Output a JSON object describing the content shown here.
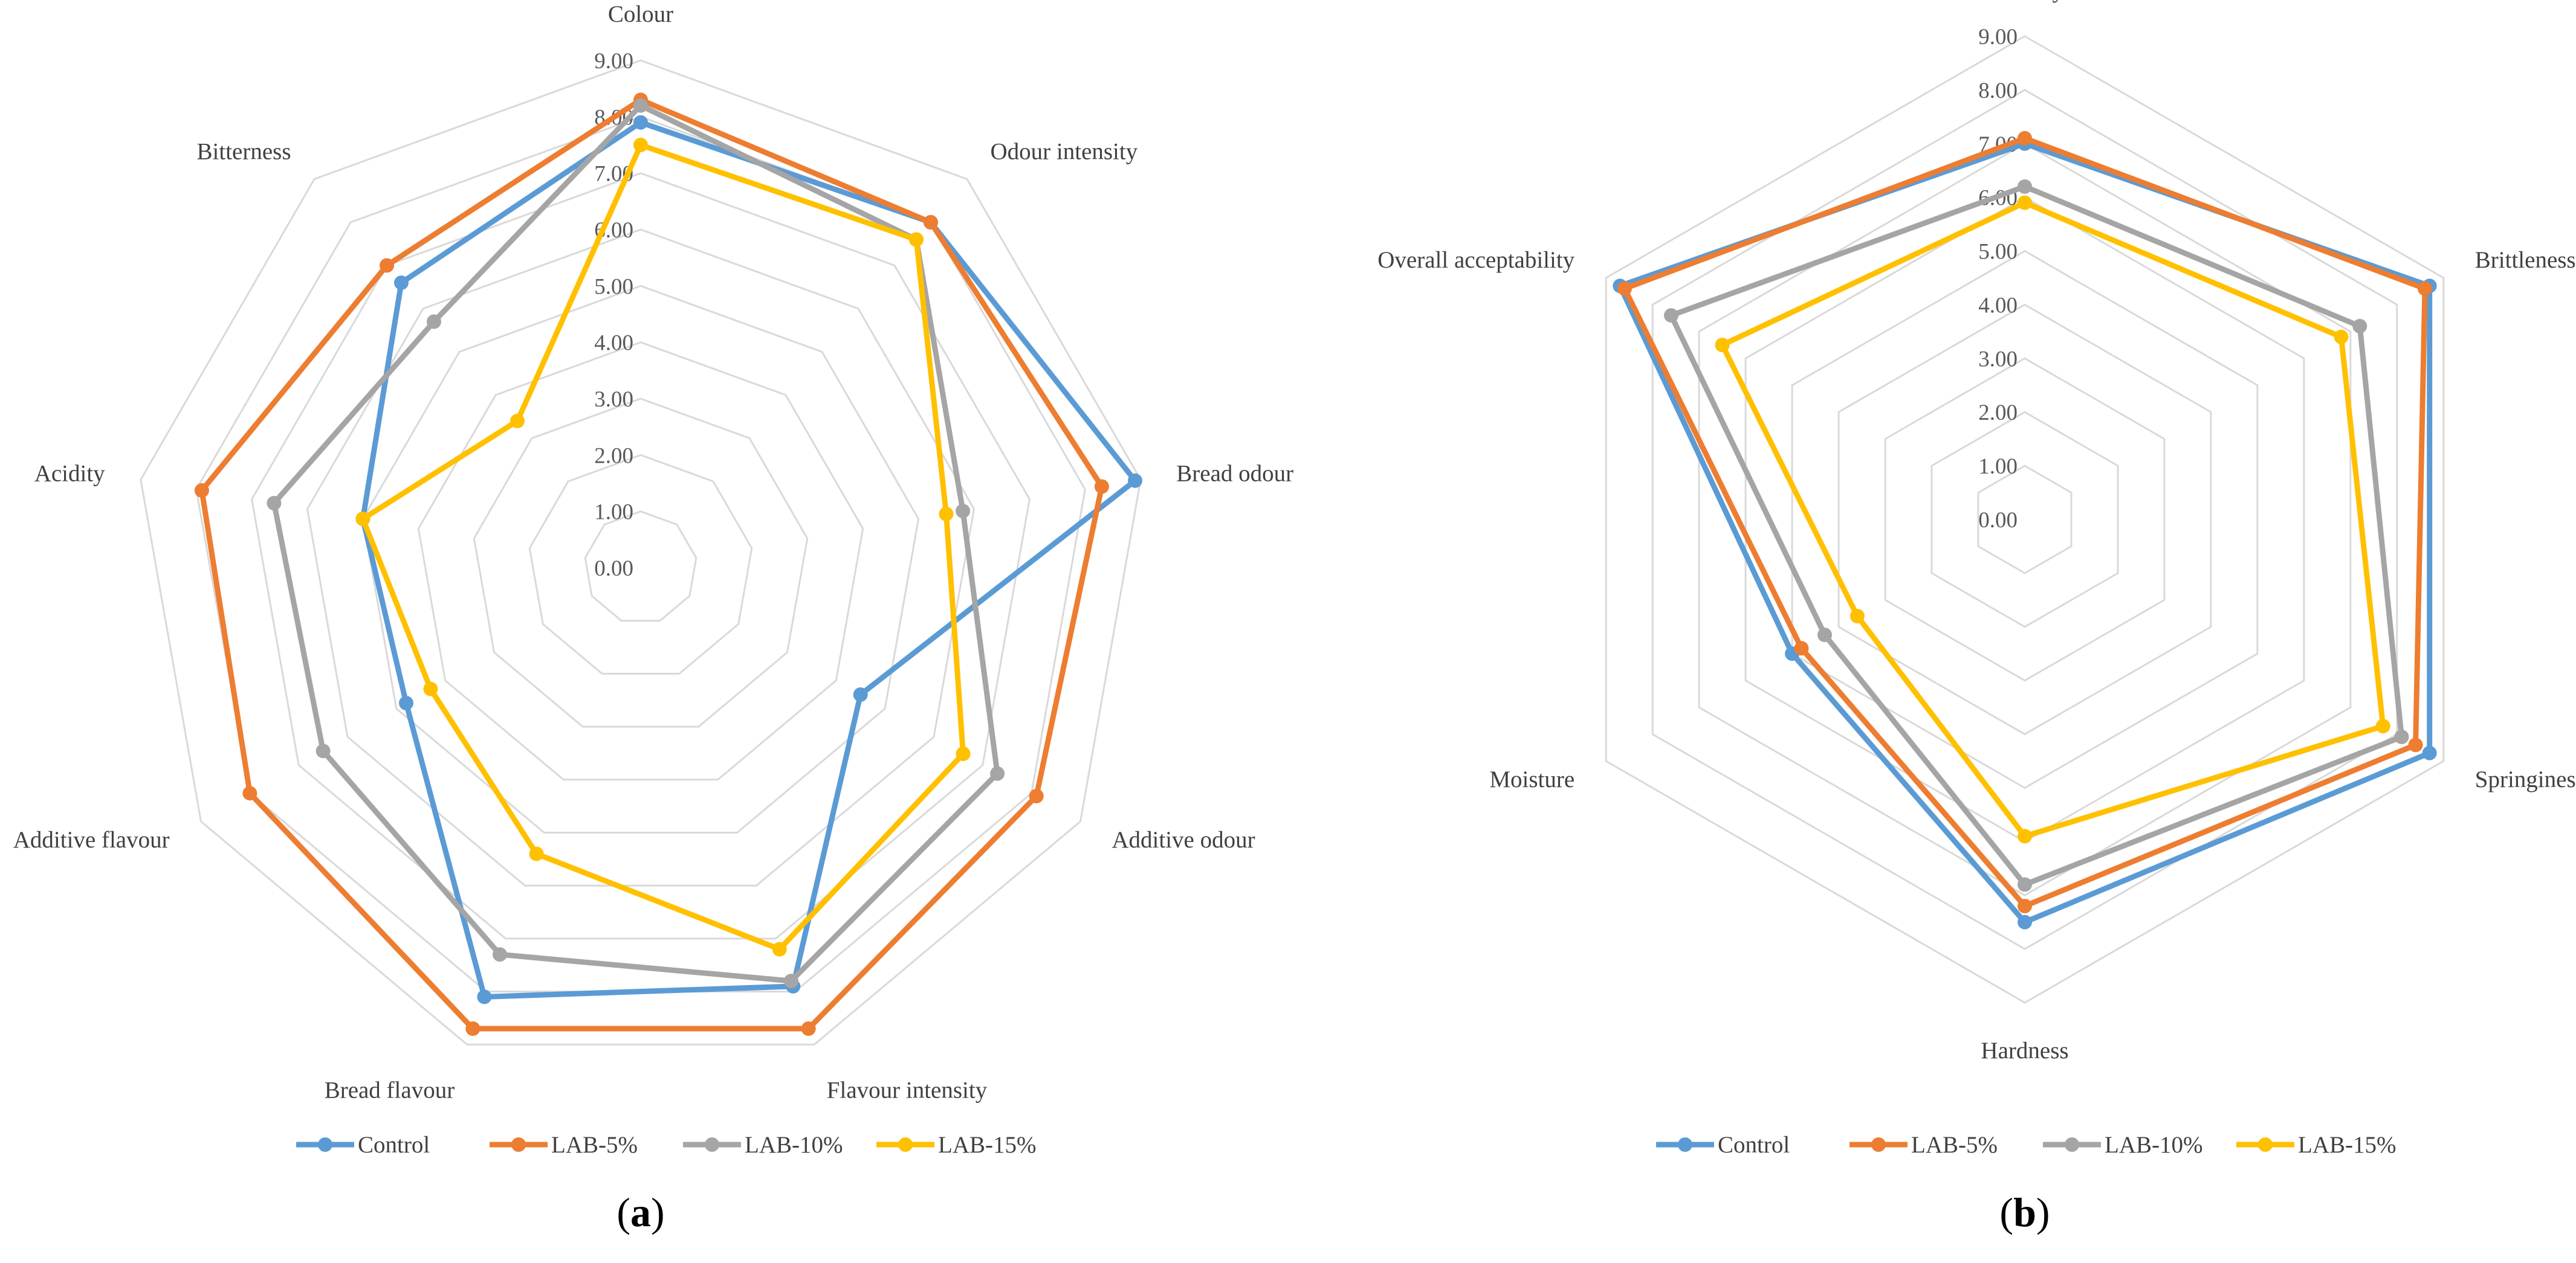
{
  "chart_data": [
    {
      "type": "radar",
      "panel_label": "a",
      "axes": [
        "Colour",
        "Odour intensity",
        "Bread odour",
        "Additive odour",
        "Flavour intensity",
        "Bread flavour",
        "Additive flavour",
        "Acidity",
        "Bitterness"
      ],
      "tick_labels": [
        "0.00",
        "1.00",
        "2.00",
        "3.00",
        "4.00",
        "5.00",
        "6.00",
        "7.00",
        "8.00",
        "9.00"
      ],
      "range": [
        0,
        9
      ],
      "grid": true,
      "legend_position": "bottom",
      "series": [
        {
          "name": "Control",
          "color": "#5B9BD5",
          "values": [
            7.9,
            8.0,
            8.9,
            4.5,
            7.9,
            8.1,
            4.8,
            5.0,
            6.6
          ]
        },
        {
          "name": "LAB-5%",
          "color": "#ED7D31",
          "values": [
            8.3,
            8.0,
            8.3,
            8.1,
            8.7,
            8.7,
            8.0,
            7.9,
            7.0
          ]
        },
        {
          "name": "LAB-10%",
          "color": "#A5A5A5",
          "values": [
            8.2,
            7.6,
            5.8,
            7.3,
            7.8,
            7.3,
            6.5,
            6.6,
            5.7
          ]
        },
        {
          "name": "LAB-15%",
          "color": "#FFC000",
          "values": [
            7.5,
            7.6,
            5.5,
            6.6,
            7.2,
            5.4,
            4.3,
            5.0,
            3.4
          ]
        }
      ]
    },
    {
      "type": "radar",
      "panel_label": "b",
      "axes": [
        "Porosity",
        "Brittleness",
        "Springiness",
        "Hardness",
        "Moisture",
        "Overall acceptability"
      ],
      "tick_labels": [
        "0.00",
        "1.00",
        "2.00",
        "3.00",
        "4.00",
        "5.00",
        "6.00",
        "7.00",
        "8.00",
        "9.00"
      ],
      "range": [
        0,
        9
      ],
      "grid": true,
      "legend_position": "bottom",
      "series": [
        {
          "name": "Control",
          "color": "#5B9BD5",
          "values": [
            7.0,
            8.7,
            8.7,
            7.5,
            5.0,
            8.7
          ]
        },
        {
          "name": "LAB-5%",
          "color": "#ED7D31",
          "values": [
            7.1,
            8.6,
            8.4,
            7.2,
            4.8,
            8.6
          ]
        },
        {
          "name": "LAB-10%",
          "color": "#A5A5A5",
          "values": [
            6.2,
            7.2,
            8.1,
            6.8,
            4.3,
            7.6
          ]
        },
        {
          "name": "LAB-15%",
          "color": "#FFC000",
          "values": [
            5.9,
            6.8,
            7.7,
            5.9,
            3.6,
            6.5
          ]
        }
      ]
    }
  ]
}
